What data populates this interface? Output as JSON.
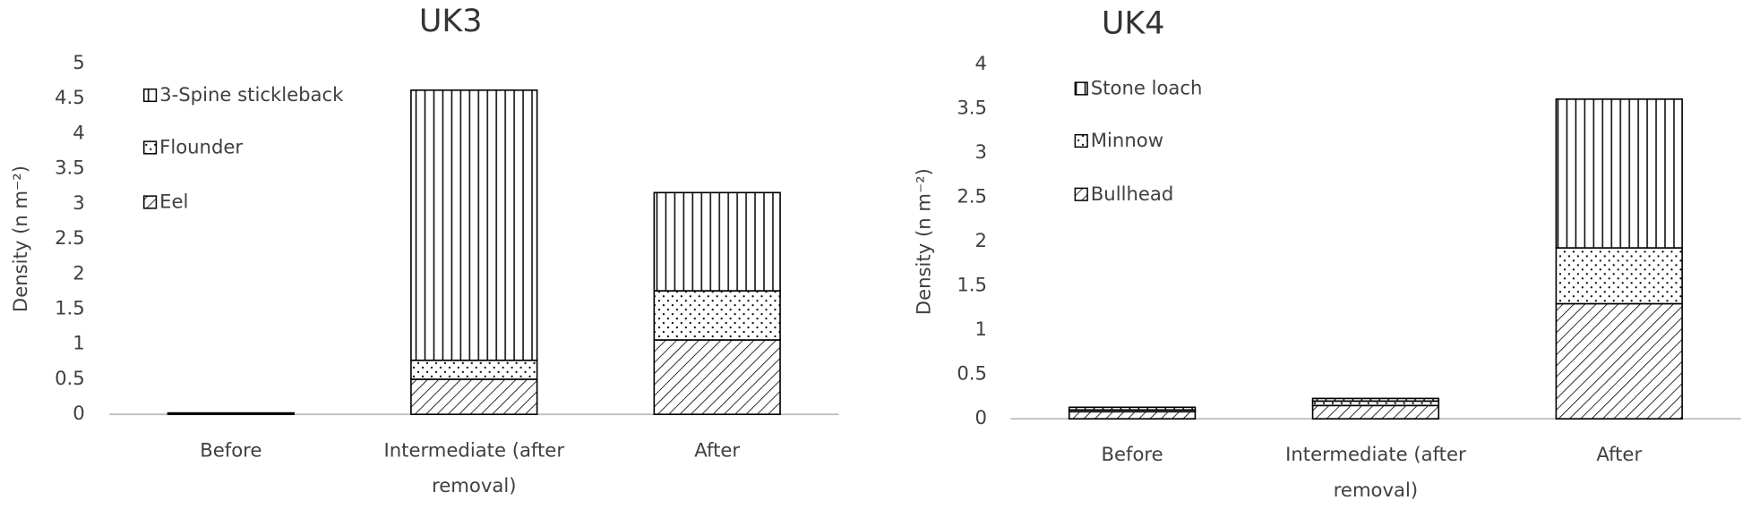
{
  "chart_data": [
    {
      "type": "bar",
      "stacked": true,
      "title": "UK3",
      "y_label": "Density (n m⁻²)",
      "categories": [
        "Before",
        "Intermediate (after removal)",
        "After"
      ],
      "series": [
        {
          "name": "Eel",
          "color": "#000000",
          "pattern": "diagonal",
          "values": [
            0.02,
            0.5,
            1.06
          ]
        },
        {
          "name": "Flounder",
          "color": "#000000",
          "pattern": "dots",
          "values": [
            0,
            0.27,
            0.7
          ]
        },
        {
          "name": "3-Spine stickleback",
          "color": "#000000",
          "pattern": "vertical",
          "values": [
            0,
            3.85,
            1.4
          ]
        }
      ],
      "ylim": [
        0,
        5
      ],
      "yticks": [
        0,
        0.5,
        1,
        1.5,
        2,
        2.5,
        3,
        3.5,
        4,
        4.5,
        5
      ],
      "grid": false,
      "legend": "upper-left"
    },
    {
      "type": "bar",
      "stacked": true,
      "title": "UK4",
      "y_label": "Density (n m⁻²)",
      "categories": [
        "Before",
        "Intermediate (after removal)",
        "After"
      ],
      "series": [
        {
          "name": "Bullhead",
          "color": "#000000",
          "pattern": "diagonal",
          "values": [
            0.08,
            0.15,
            1.3
          ]
        },
        {
          "name": "Minnow",
          "color": "#000000",
          "pattern": "dots",
          "values": [
            0.02,
            0.05,
            0.63
          ]
        },
        {
          "name": "Stone loach",
          "color": "#000000",
          "pattern": "vertical",
          "values": [
            0.03,
            0.03,
            1.68
          ]
        }
      ],
      "ylim": [
        0,
        4
      ],
      "yticks": [
        0,
        0.5,
        1,
        1.5,
        2,
        2.5,
        3,
        3.5,
        4
      ],
      "grid": false,
      "legend": "upper-left"
    }
  ]
}
